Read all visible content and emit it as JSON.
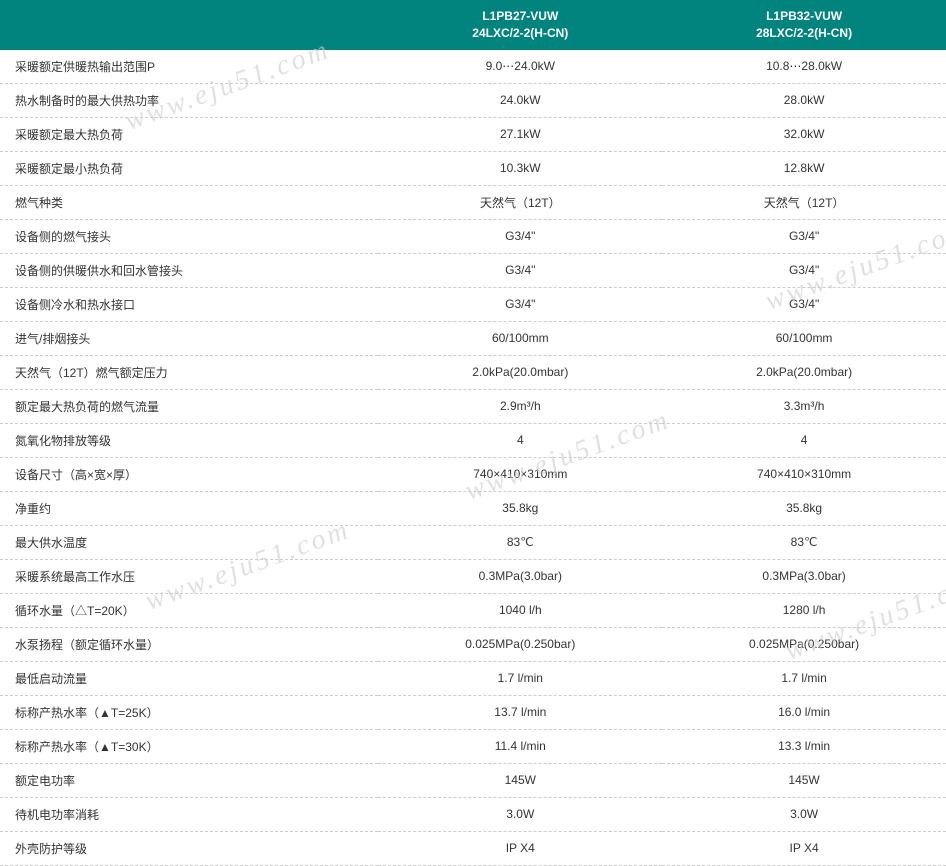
{
  "table": {
    "header": {
      "col1": "",
      "col2_line1": "L1PB27-VUW",
      "col2_line2": "24LXC/2-2(H-CN)",
      "col3_line1": "L1PB32-VUW",
      "col3_line2": "28LXC/2-2(H-CN)"
    },
    "rows": [
      {
        "label": "采暖额定供暖热输出范围P",
        "v1": "9.0⋯24.0kW",
        "v2": "10.8⋯28.0kW"
      },
      {
        "label": "热水制备时的最大供热功率",
        "v1": "24.0kW",
        "v2": "28.0kW"
      },
      {
        "label": "采暖额定最大热负荷",
        "v1": "27.1kW",
        "v2": "32.0kW"
      },
      {
        "label": "采暖额定最小热负荷",
        "v1": "10.3kW",
        "v2": "12.8kW"
      },
      {
        "label": "燃气种类",
        "v1": "天然气（12T）",
        "v2": "天然气（12T）"
      },
      {
        "label": "设备侧的燃气接头",
        "v1": "G3/4\"",
        "v2": "G3/4\""
      },
      {
        "label": "设备侧的供暖供水和回水管接头",
        "v1": "G3/4\"",
        "v2": "G3/4\""
      },
      {
        "label": "设备侧冷水和热水接口",
        "v1": "G3/4\"",
        "v2": "G3/4\""
      },
      {
        "label": "进气/排烟接头",
        "v1": "60/100mm",
        "v2": "60/100mm"
      },
      {
        "label": "天然气（12T）燃气额定压力",
        "v1": "2.0kPa(20.0mbar)",
        "v2": "2.0kPa(20.0mbar)"
      },
      {
        "label": "额定最大热负荷的燃气流量",
        "v1": "2.9m³/h",
        "v2": "3.3m³/h"
      },
      {
        "label": "氮氧化物排放等级",
        "v1": "4",
        "v2": "4"
      },
      {
        "label": "设备尺寸（高×宽×厚）",
        "v1": "740×410×310mm",
        "v2": "740×410×310mm"
      },
      {
        "label": "净重约",
        "v1": "35.8kg",
        "v2": "35.8kg"
      },
      {
        "label": "最大供水温度",
        "v1": "83℃",
        "v2": "83℃"
      },
      {
        "label": "采暖系统最高工作水压",
        "v1": "0.3MPa(3.0bar)",
        "v2": "0.3MPa(3.0bar)"
      },
      {
        "label": "循环水量（△T=20K）",
        "v1": "1040 l/h",
        "v2": "1280 l/h"
      },
      {
        "label": "水泵扬程（额定循环水量）",
        "v1": "0.025MPa(0.250bar)",
        "v2": "0.025MPa(0.250bar)"
      },
      {
        "label": "最低启动流量",
        "v1": "1.7 l/min",
        "v2": "1.7 l/min"
      },
      {
        "label": "标称产热水率（▲T=25K）",
        "v1": "13.7 l/min",
        "v2": "16.0 l/min"
      },
      {
        "label": "标称产热水率（▲T=30K）",
        "v1": "11.4 l/min",
        "v2": "13.3 l/min"
      },
      {
        "label": "额定电功率",
        "v1": "145W",
        "v2": "145W"
      },
      {
        "label": "待机电功率消耗",
        "v1": "3.0W",
        "v2": "3.0W"
      },
      {
        "label": "外壳防护等级",
        "v1": "IP X4",
        "v2": "IP X4"
      }
    ]
  },
  "watermark_text": "www.eju51.com",
  "styling": {
    "header_bg": "#00847d",
    "header_text_color": "#ffffff",
    "body_text_color": "#333333",
    "border_color": "#cccccc",
    "watermark_color": "#cccccc",
    "font_size_header": 12,
    "font_size_body": 12,
    "watermark_font_size": 28,
    "watermark_rotation": -20
  }
}
